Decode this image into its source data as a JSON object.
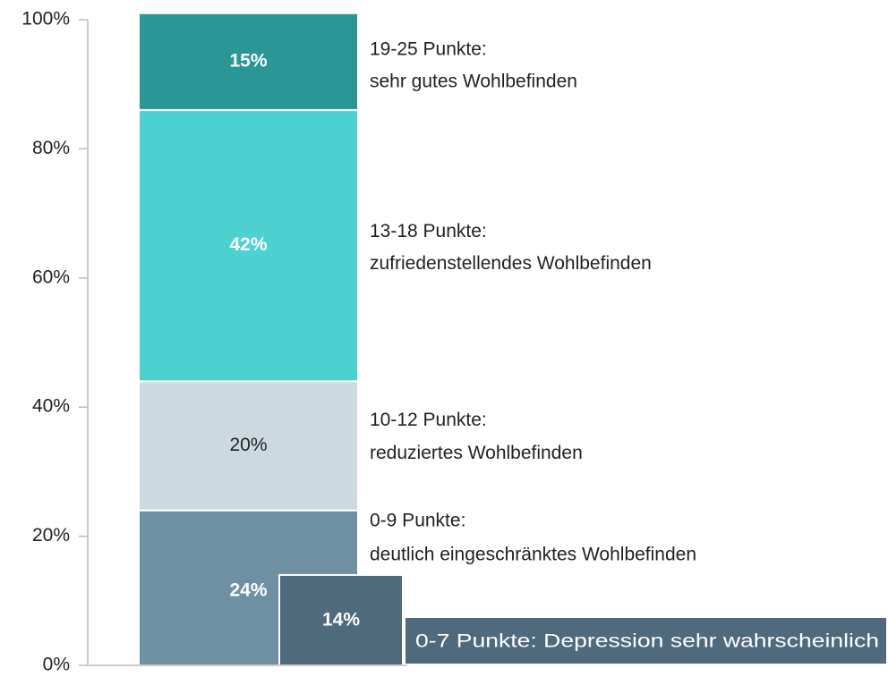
{
  "chart_data": {
    "type": "stacked_bar",
    "ylim": [
      0,
      100
    ],
    "yticks": [
      {
        "value": 0,
        "label": "0%"
      },
      {
        "value": 20,
        "label": "20%"
      },
      {
        "value": 40,
        "label": "40%"
      },
      {
        "value": 60,
        "label": "60%"
      },
      {
        "value": 80,
        "label": "80%"
      },
      {
        "value": 100,
        "label": "100%"
      }
    ],
    "series": [
      {
        "name": "0-9 Punkte:",
        "description": "deutlich eingeschränktes Wohlbefinden",
        "color": "#6e90a2",
        "values": [
          24
        ],
        "value_labels": [
          "24%"
        ],
        "label_color": "#ffffff",
        "label_bold": true
      },
      {
        "name": "10-12 Punkte:",
        "description": "reduziertes Wohlbefinden",
        "color": "#cdd9e0",
        "values": [
          20
        ],
        "value_labels": [
          "20%"
        ],
        "label_color": "#222222",
        "label_bold": false
      },
      {
        "name": "13-18 Punkte:",
        "description": "zufriedenstellendes Wohlbefinden",
        "color": "#4dd0d0",
        "values": [
          42
        ],
        "value_labels": [
          "42%"
        ],
        "label_color": "#ffffff",
        "label_bold": true
      },
      {
        "name": "19-25 Punkte:",
        "description": "sehr gutes Wohlbefinden",
        "color": "#2a9696",
        "values": [
          15
        ],
        "value_labels": [
          "15%"
        ],
        "label_color": "#ffffff",
        "label_bold": true
      }
    ],
    "inset": {
      "name": "0-7 Punkte: Depression sehr wahrscheinlich",
      "color": "#4f6a7c",
      "values": [
        14
      ],
      "value_labels": [
        "14%"
      ],
      "label_color": "#ffffff",
      "label_bold": true
    }
  }
}
